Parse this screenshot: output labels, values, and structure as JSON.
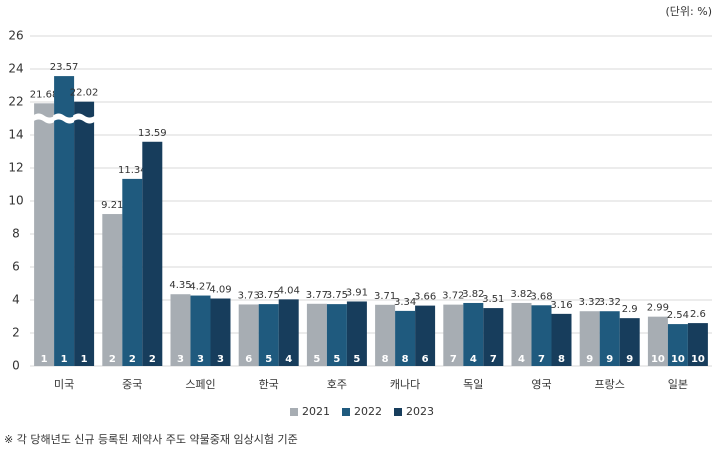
{
  "chart_data": {
    "type": "bar",
    "unit_note": "(단위: %)",
    "footnote": "※ 각 당해년도 신규 등록된 제약사 주도 약물중재 임상시험 기준",
    "categories": [
      "미국",
      "중국",
      "스페인",
      "한국",
      "호주",
      "캐나다",
      "독일",
      "영국",
      "프랑스",
      "일본"
    ],
    "series": [
      {
        "name": "2021",
        "color": "#a7adb3",
        "values": [
          21.68,
          9.21,
          4.35,
          3.73,
          3.77,
          3.71,
          3.72,
          3.82,
          3.32,
          2.99
        ],
        "ranks": [
          1,
          2,
          3,
          6,
          5,
          8,
          7,
          4,
          9,
          10
        ]
      },
      {
        "name": "2022",
        "color": "#1f5a7e",
        "values": [
          23.57,
          11.34,
          4.27,
          3.75,
          3.75,
          3.34,
          3.82,
          3.68,
          3.32,
          2.54
        ],
        "ranks": [
          1,
          2,
          3,
          5,
          5,
          8,
          4,
          7,
          9,
          10
        ]
      },
      {
        "name": "2023",
        "color": "#173d5c",
        "values": [
          22.02,
          13.59,
          4.09,
          4.04,
          3.91,
          3.66,
          3.51,
          3.16,
          2.9,
          2.6
        ],
        "ranks": [
          1,
          2,
          3,
          4,
          5,
          6,
          7,
          8,
          9,
          10
        ]
      }
    ],
    "ylim": [
      0,
      26
    ],
    "yticks": [
      0,
      2,
      4,
      6,
      8,
      10,
      12,
      14,
      22,
      24,
      26
    ],
    "grid": true
  }
}
